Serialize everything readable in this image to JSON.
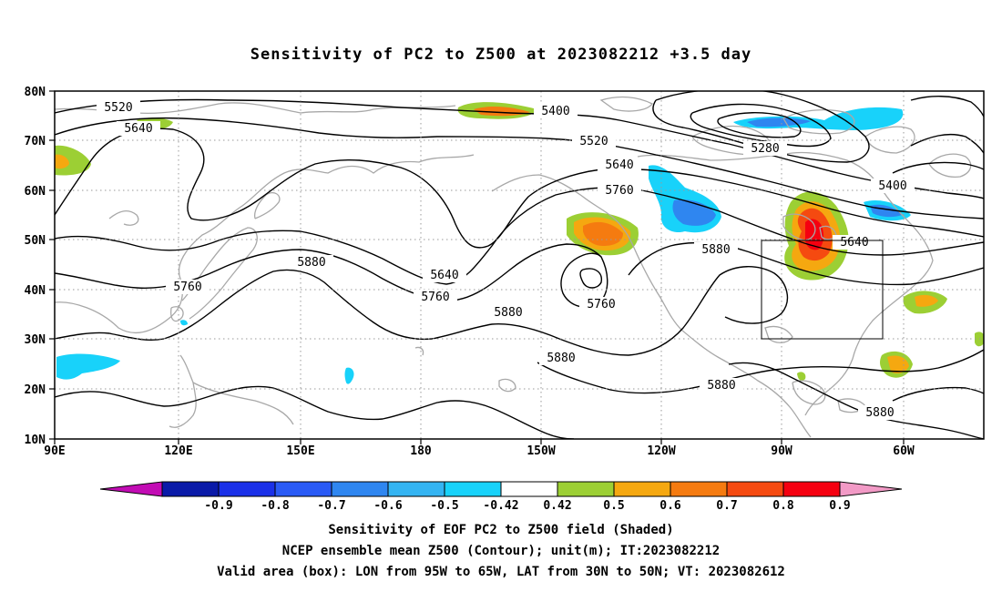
{
  "title": "Sensitivity of PC2 to Z500 at 2023082212 +3.5 day",
  "map": {
    "lat_labels": [
      "80N",
      "70N",
      "60N",
      "50N",
      "40N",
      "30N",
      "20N",
      "10N"
    ],
    "lon_labels": [
      "90E",
      "120E",
      "150E",
      "180",
      "150W",
      "120W",
      "90W",
      "60W"
    ],
    "contour_labels": [
      {
        "id": "c5520a",
        "text": "5520"
      },
      {
        "id": "c5640a",
        "text": "5640"
      },
      {
        "id": "c5400a",
        "text": "5400"
      },
      {
        "id": "c5520b",
        "text": "5520"
      },
      {
        "id": "c5640b",
        "text": "5640"
      },
      {
        "id": "c5760a",
        "text": "5760"
      },
      {
        "id": "c5280",
        "text": "5280"
      },
      {
        "id": "c5400b",
        "text": "5400"
      },
      {
        "id": "c5640c",
        "text": "5640"
      },
      {
        "id": "c5640d",
        "text": "5640"
      },
      {
        "id": "c5760b",
        "text": "5760"
      },
      {
        "id": "c5880a",
        "text": "5880"
      },
      {
        "id": "c5760c",
        "text": "5760"
      },
      {
        "id": "c5880b",
        "text": "5880"
      },
      {
        "id": "c5760d",
        "text": "5760"
      },
      {
        "id": "c5880c",
        "text": "5880"
      },
      {
        "id": "c5880d",
        "text": "5880"
      },
      {
        "id": "c5880e",
        "text": "5880"
      },
      {
        "id": "c5880f",
        "text": "5880"
      }
    ],
    "valid_box": {
      "lon_west": "95W",
      "lon_east": "65W",
      "lat_south": "30N",
      "lat_north": "50N"
    }
  },
  "colorbar": {
    "labels": [
      "-0.9",
      "-0.8",
      "-0.7",
      "-0.6",
      "-0.5",
      "-0.42",
      "0.42",
      "0.5",
      "0.6",
      "0.7",
      "0.8",
      "0.9"
    ],
    "colors": [
      "#c20cb4",
      "#0a1aa8",
      "#1a30e8",
      "#2a5af5",
      "#2f86f0",
      "#34b4f2",
      "#18d2fa",
      "#ffffff",
      "#9ccf34",
      "#f5a810",
      "#f57b10",
      "#f54a10",
      "#f50010",
      "#f29ac6"
    ]
  },
  "captions": {
    "line1": "Sensitivity of EOF PC2 to Z500 field (Shaded)",
    "line2": "NCEP ensemble mean Z500 (Contour); unit(m); IT:2023082212",
    "line3": "Valid area (box): LON from 95W to 65W, LAT from 30N to 50N; VT: 2023082612"
  }
}
